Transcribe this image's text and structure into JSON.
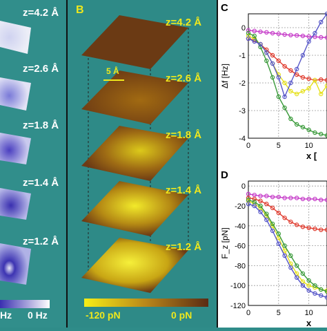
{
  "panel_a": {
    "z_labels": [
      "z=4.2 Å",
      "z=2.6 Å",
      "z=1.8 Å",
      "z=1.4 Å",
      "z=1.2 Å"
    ],
    "colorbar": {
      "left_label": "Hz",
      "right_label": "0 Hz"
    }
  },
  "panel_b": {
    "letter": "B",
    "z_labels": [
      "z=4.2 Å",
      "z=2.6 Å",
      "z=1.8 Å",
      "z=1.4 Å",
      "z=1.2 Å"
    ],
    "scale_bar": "5 Å",
    "colorbar": {
      "left_label": "-120 pN",
      "right_label": "0 pN"
    }
  },
  "chart_data": [
    {
      "type": "line",
      "panel": "C",
      "ylabel": "Δf [Hz]",
      "xlabel": "x [",
      "x_ticks": [
        0,
        5,
        10
      ],
      "y_ticks": [
        0,
        -1,
        -2,
        -3,
        -4
      ],
      "xlim": [
        0,
        13
      ],
      "ylim": [
        -4,
        0.5
      ],
      "grid": true,
      "series": [
        {
          "color": "#c53ac8",
          "x": [
            0,
            1,
            2,
            3,
            4,
            5,
            6,
            7,
            8,
            9,
            10,
            11,
            12,
            13
          ],
          "y": [
            -0.1,
            -0.12,
            -0.15,
            -0.17,
            -0.2,
            -0.22,
            -0.25,
            -0.27,
            -0.28,
            -0.3,
            -0.32,
            -0.33,
            -0.35,
            -0.36
          ]
        },
        {
          "color": "#e03b2e",
          "x": [
            0,
            1,
            2,
            3,
            4,
            5,
            6,
            7,
            8,
            9,
            10,
            11,
            12,
            13
          ],
          "y": [
            -0.4,
            -0.45,
            -0.6,
            -0.8,
            -1.0,
            -1.2,
            -1.4,
            -1.55,
            -1.7,
            -1.8,
            -1.85,
            -1.9,
            -1.88,
            -1.9
          ]
        },
        {
          "color": "#e6e11c",
          "x": [
            0,
            1,
            2,
            3,
            4,
            5,
            6,
            7,
            8,
            9,
            10,
            11,
            12,
            13
          ],
          "y": [
            -0.3,
            -0.4,
            -0.6,
            -0.9,
            -1.3,
            -1.7,
            -2.0,
            -2.3,
            -2.4,
            -2.3,
            -2.2,
            -1.9,
            -2.4,
            -2.1
          ]
        },
        {
          "color": "#3a9a3a",
          "x": [
            0,
            1,
            2,
            3,
            4,
            5,
            6,
            7,
            8,
            9,
            10,
            11,
            12,
            13
          ],
          "y": [
            -0.2,
            -0.3,
            -0.7,
            -1.2,
            -1.8,
            -2.5,
            -2.9,
            -3.3,
            -3.5,
            -3.6,
            -3.7,
            -3.8,
            -3.85,
            -3.9
          ]
        },
        {
          "color": "#5656c8",
          "x": [
            0,
            1,
            2,
            3,
            4,
            5,
            6,
            7,
            8,
            9,
            10,
            11,
            12,
            13
          ],
          "y": [
            -0.4,
            -0.5,
            -0.6,
            -0.9,
            -1.3,
            -1.8,
            -2.5,
            -2.0,
            -1.5,
            -1.0,
            -0.5,
            -0.2,
            0.2,
            0.5
          ]
        }
      ]
    },
    {
      "type": "line",
      "panel": "D",
      "ylabel": "F_z [pN]",
      "xlabel": "x",
      "x_ticks": [
        0,
        5,
        10
      ],
      "y_ticks": [
        0,
        -20,
        -40,
        -60,
        -80,
        -100,
        -120
      ],
      "xlim": [
        0,
        13
      ],
      "ylim": [
        -120,
        5
      ],
      "grid": true,
      "series": [
        {
          "color": "#c53ac8",
          "x": [
            0,
            1,
            2,
            3,
            4,
            5,
            6,
            7,
            8,
            9,
            10,
            11,
            12,
            13
          ],
          "y": [
            -8,
            -9,
            -10,
            -10,
            -11,
            -11,
            -12,
            -12,
            -12,
            -13,
            -13,
            -13,
            -14,
            -14
          ]
        },
        {
          "color": "#e03b2e",
          "x": [
            0,
            1,
            2,
            3,
            4,
            5,
            6,
            7,
            8,
            9,
            10,
            11,
            12,
            13
          ],
          "y": [
            -12,
            -13,
            -15,
            -18,
            -22,
            -27,
            -32,
            -36,
            -39,
            -41,
            -42,
            -43,
            -44,
            -44
          ]
        },
        {
          "color": "#e6e11c",
          "x": [
            0,
            1,
            2,
            3,
            4,
            5,
            6,
            7,
            8,
            9,
            10,
            11,
            12,
            13
          ],
          "y": [
            -15,
            -18,
            -22,
            -30,
            -40,
            -52,
            -65,
            -78,
            -88,
            -96,
            -100,
            -102,
            -104,
            -105
          ]
        },
        {
          "color": "#3a9a3a",
          "x": [
            0,
            1,
            2,
            3,
            4,
            5,
            6,
            7,
            8,
            9,
            10,
            11,
            12,
            13
          ],
          "y": [
            -14,
            -16,
            -20,
            -28,
            -38,
            -48,
            -60,
            -70,
            -80,
            -88,
            -95,
            -100,
            -104,
            -106
          ]
        },
        {
          "color": "#5656c8",
          "x": [
            0,
            1,
            2,
            3,
            4,
            5,
            6,
            7,
            8,
            9,
            10,
            11,
            12,
            13
          ],
          "y": [
            -18,
            -20,
            -26,
            -34,
            -45,
            -58,
            -70,
            -82,
            -92,
            -100,
            -105,
            -108,
            -110,
            -112
          ]
        }
      ]
    }
  ]
}
